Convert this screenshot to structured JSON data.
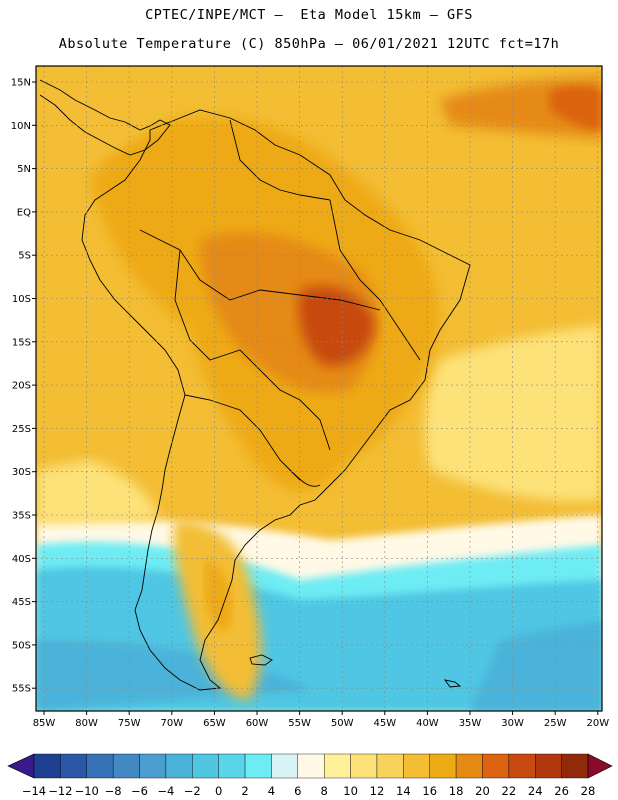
{
  "header": {
    "line1": "CPTEC/INPE/MCT –  Eta Model 15km – GFS",
    "line2": "Absolute Temperature (C) 850hPa – 06/01/2021 12UTC fct=17h"
  },
  "axes": {
    "lat_labels": [
      "15N",
      "10N",
      "5N",
      "EQ",
      "5S",
      "10S",
      "15S",
      "20S",
      "25S",
      "30S",
      "35S",
      "40S",
      "45S",
      "50S",
      "55S"
    ],
    "lon_labels": [
      "85W",
      "80W",
      "75W",
      "70W",
      "65W",
      "60W",
      "55W",
      "50W",
      "45W",
      "40W",
      "35W",
      "30W",
      "25W",
      "20W"
    ]
  },
  "colorbar": {
    "labels": [
      "-14",
      "-12",
      "-10",
      "-8",
      "-6",
      "-4",
      "-2",
      "0",
      "2",
      "4",
      "6",
      "8",
      "10",
      "12",
      "14",
      "16",
      "18",
      "20",
      "22",
      "24",
      "26",
      "28"
    ],
    "below_color": "#3a1a8a",
    "above_color": "#8a0a2a",
    "colors": [
      "#1f3f91",
      "#2a58a6",
      "#3772b6",
      "#4388c3",
      "#4a9ed0",
      "#4bb3d9",
      "#50c6e3",
      "#5ad6ea",
      "#6eecf4",
      "#d8f4f7",
      "#fff9e6",
      "#fff09a",
      "#fde27a",
      "#f9d25c",
      "#f3bd34",
      "#eeaa14",
      "#e58a12",
      "#dc6410",
      "#c74a10",
      "#b2390d",
      "#902a0b"
    ]
  },
  "map_colors": {
    "ocean_warm": "#f3bd34",
    "land_warm": "#eeaa14",
    "hot": "#e58a12",
    "hottest": "#c74a10",
    "mild": "#fde27a",
    "cool": "#fff9e6",
    "cold": "#5ad6ea",
    "colder": "#4bb3d9"
  }
}
